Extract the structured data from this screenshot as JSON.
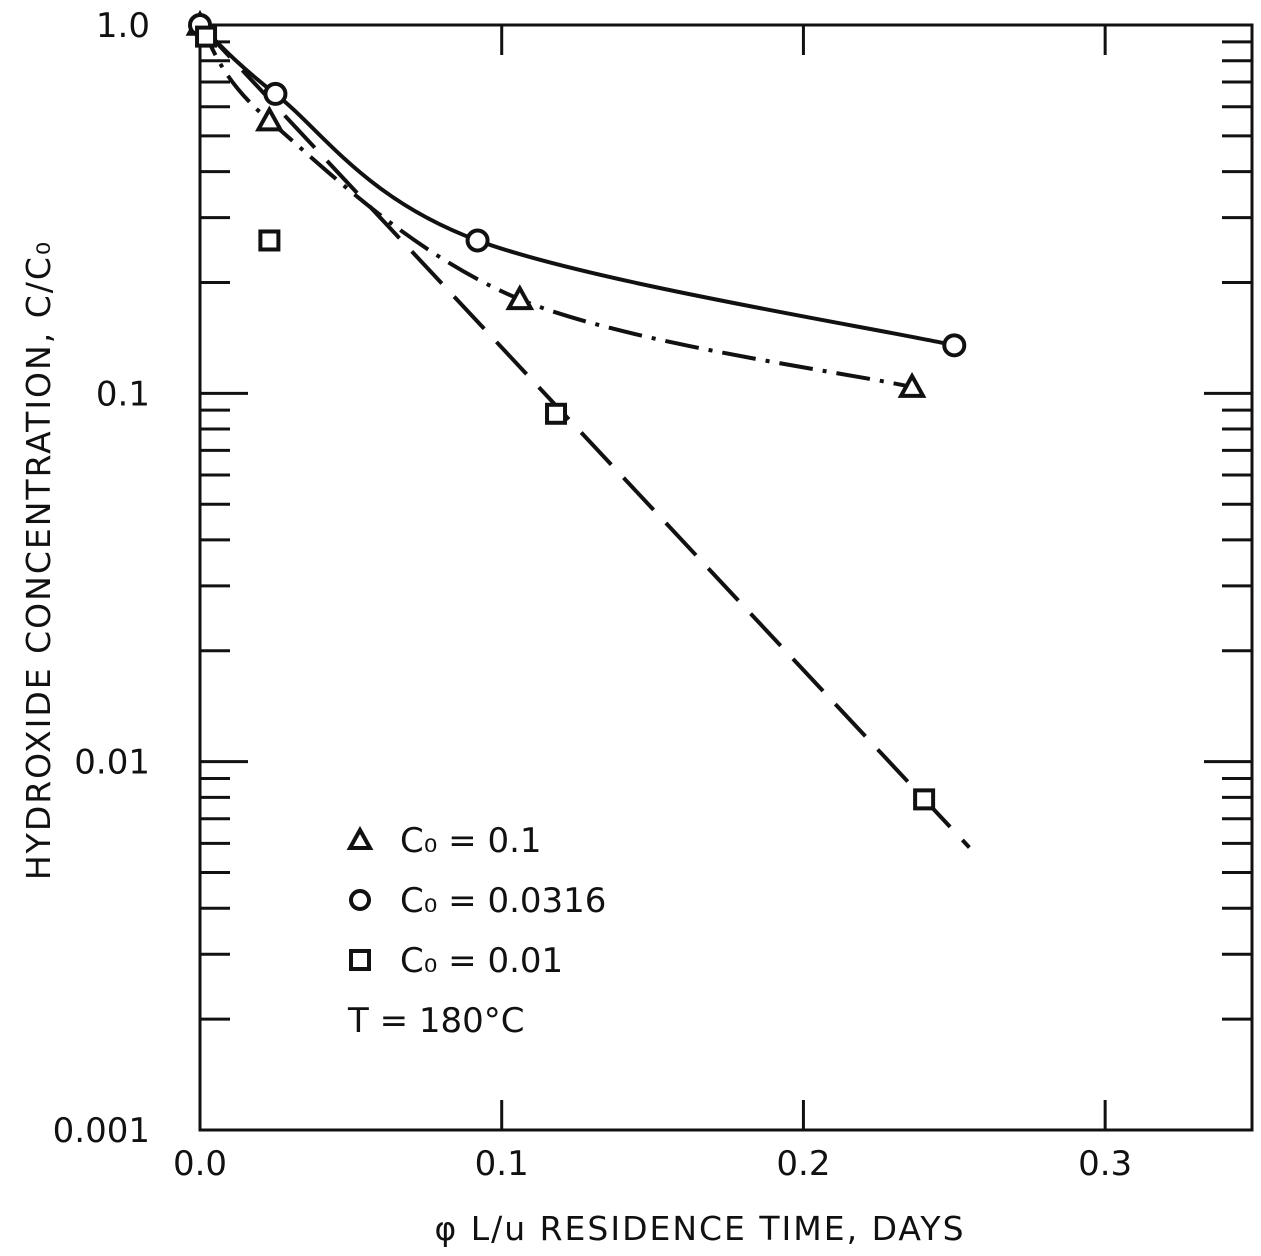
{
  "chart_data": {
    "type": "scatter",
    "title": "",
    "xlabel": "φ L/u  RESIDENCE TIME, DAYS",
    "ylabel": "HYDROXIDE CONCENTRATION, C/C₀",
    "xlim": [
      0.0,
      0.35
    ],
    "ylim": [
      0.001,
      1.0
    ],
    "yscale": "log",
    "x_ticks": [
      {
        "value": 0.0,
        "label": "0.0"
      },
      {
        "value": 0.1,
        "label": "0.1"
      },
      {
        "value": 0.2,
        "label": "0.2"
      },
      {
        "value": 0.3,
        "label": "0.3"
      }
    ],
    "y_ticks": [
      {
        "value": 1.0,
        "label": "1.0"
      },
      {
        "value": 0.1,
        "label": "0.1"
      },
      {
        "value": 0.01,
        "label": "0.01"
      },
      {
        "value": 0.001,
        "label": "0.001"
      }
    ],
    "grid": false,
    "legend_position": "bottom-left",
    "series": [
      {
        "label": "C₀ = 0.1",
        "marker": "triangle",
        "line_style": "dash-dot",
        "points": [
          {
            "x": 0.0,
            "y": 1.0
          },
          {
            "x": 0.023,
            "y": 0.55
          },
          {
            "x": 0.106,
            "y": 0.18
          },
          {
            "x": 0.236,
            "y": 0.104
          }
        ]
      },
      {
        "label": "C₀ = 0.0316",
        "marker": "circle",
        "line_style": "solid",
        "points": [
          {
            "x": 0.0,
            "y": 1.0
          },
          {
            "x": 0.025,
            "y": 0.65
          },
          {
            "x": 0.092,
            "y": 0.26
          },
          {
            "x": 0.25,
            "y": 0.135
          }
        ]
      },
      {
        "label": "C₀ = 0.01",
        "marker": "square",
        "line_style": "long-dash",
        "points": [
          {
            "x": 0.002,
            "y": 0.93
          },
          {
            "x": 0.023,
            "y": 0.26
          },
          {
            "x": 0.118,
            "y": 0.088
          },
          {
            "x": 0.24,
            "y": 0.0079
          }
        ]
      }
    ],
    "legend_extra": "T  = 180°C"
  }
}
